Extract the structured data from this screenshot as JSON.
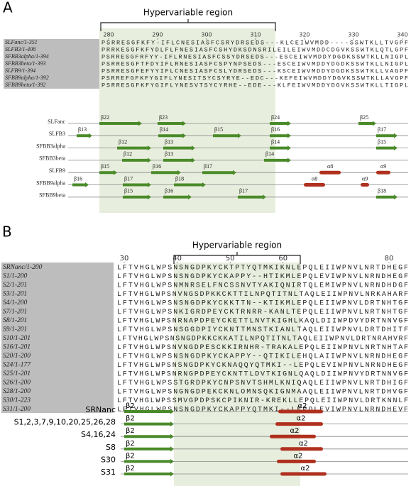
{
  "panels": [
    {
      "label": "A",
      "title": "Hypervariable region",
      "ruler": {
        "ticks": [
          280,
          290,
          300,
          310,
          320,
          330,
          340
        ]
      },
      "alignment": [
        {
          "name": "SLFanc/1-351",
          "seq": "PSRRESGFKFY-IFLCNESIASFCSRYDRSEDS---KLCEIWVMDD----SSWTKLLTVGPF"
        },
        {
          "name": "SLFB3/1-408",
          "seq": "PRRKESGFKFYDLFLFNESIASFCSHYDKSDNSRILEILEIWVMDDCDGVKSSWTKLQTLGPF"
        },
        {
          "name": "SFBB3alpha/1-394",
          "seq": "PSRRESGFRFYY-IFLRNESIASFCSSYDRSEDS---ESCEIWVMDDYDGDKSSWTKLLNIGPL"
        },
        {
          "name": "SFBB3beta/1-393",
          "seq": "PSRRESGFTFDYIFLRNESIASFCSPYNPSEDS---ESCEIWVMDDYDGDKSSWTKLLNIGPL"
        },
        {
          "name": "SLFB9/1-394",
          "seq": "PSRRESGFEFYYIFLCNESIASFCSLYDRSEDS---KSCEIWVMDDYDGDKSSWTKLLVAGPF"
        },
        {
          "name": "SFBB9alpha/1-392",
          "seq": "PSRREFGFKFYGIFLYNESITSYCSYRYE--EDC---KEFEIWVMDDYDGVKSSWTKLLAVGPF"
        },
        {
          "name": "SFBB9beta/1-392",
          "seq": "PSRRESGFKFYGIFLYNESVTSYCYRHE--EDE---KLFEIWVMDDYDGVKSSWTKLLTIGPL"
        }
      ],
      "tracks": [
        {
          "name": "SLFanc",
          "elements": [
            "β22",
            "β23",
            "β24",
            "β25"
          ]
        },
        {
          "name": "SLFB3",
          "elements": [
            "β13",
            "β14",
            "β15",
            "β16",
            "β17"
          ]
        },
        {
          "name": "SFBB3alpha",
          "elements": [
            "β12",
            "β13",
            "β14",
            "β15"
          ]
        },
        {
          "name": "SFBB3beta",
          "elements": [
            "β12",
            "β13",
            "β14"
          ]
        },
        {
          "name": "SLFB9",
          "elements": [
            "β15",
            "β16",
            "β17",
            "α8",
            "α9"
          ]
        },
        {
          "name": "SFBB9alpha",
          "elements": [
            "β16",
            "β17",
            "β18",
            "α8",
            "α9"
          ]
        },
        {
          "name": "SFBB9beta",
          "elements": [
            "β15",
            "β16",
            "β17",
            "β18"
          ]
        }
      ]
    },
    {
      "label": "B",
      "title": "Hypervariable region",
      "ruler": {
        "ticks": [
          30,
          40,
          50,
          60,
          80
        ]
      },
      "alignment": [
        {
          "name": "SRNanc/1-200",
          "seq": "LFTVHGLWPSNSNGDPKYCKTPTYQTMKIKNLEPQLEIIWPNVLNRTDHEGF"
        },
        {
          "name": "S1/1-200",
          "seq": "LFTVHGLWPSNSNGDPKYCKAPPY--HTIKMLEPQLEVIWPNVLNRNDHEGF"
        },
        {
          "name": "S2/1-201",
          "seq": "LFTVHGLWPSNMNRSELFNCSSNVTYAKIQNIRTQLEMIWPNVLNRNDHDGF"
        },
        {
          "name": "S3/1-201",
          "seq": "LFTVHGLWPSNVNGSDPKKCKTTILNPQTITNLTAQLEIIWPNVLNRKAHARF"
        },
        {
          "name": "S4/1-200",
          "seq": "LFTVHGLWPSNSNGDPKYCKKTTN--KTIKMLEPQLEIIWPNVLDRTNHTGF"
        },
        {
          "name": "S7/1-201",
          "seq": "LFTVHGLWPSNKIGRDPEYCKTRNRR-KANLTEPQLEIIWPNVLNRTNHTGF"
        },
        {
          "name": "S8/1-201",
          "seq": "LFTVHGLWPSNRNAPDPEYCKETTLNVTKIGHLKAQLDIIWPDVYDRTNNVGF"
        },
        {
          "name": "S9/1-201",
          "seq": "LFTVHGLWPSNSGGDPIYCKNTTMNSTKIANLTAQLEIIWPNVLDRTDHITF"
        },
        {
          "name": "S10/1-201",
          "seq": "LFTVHGLWPSNSNGDPKKCKKATILNPQTITNLTAQLEIIWPNVLDRTNRAHVRF"
        },
        {
          "name": "S16/1-201",
          "seq": "LFTVHGLWPSNVNGDPESCKKIRNHR-TRAKALEPQLEIIWPNVLNRTNHTAF"
        },
        {
          "name": "S20/1-200",
          "seq": "LFTVHGLWPSNSNGDPKYCKAPPY--QTIKILEHQLAIIWPNVLNRNDHEGF"
        },
        {
          "name": "S24/1-177",
          "seq": "LFTVHGLWPSNSNGDPKYCKNAQQYQTMKI--LEPQLEVIWPNVLNRNDHEGF"
        },
        {
          "name": "S25/1-201",
          "seq": "LFTVHGLWPSNRNGPDPEYCKNTTLDVTKIGNLQAQLDIIWPNVYDRTNNVGF"
        },
        {
          "name": "S26/1-200",
          "seq": "LFTVHGLWPSSTGRDPKYCNPSNVTSHMLKNIQAQLEIIWPNVLNRTDHIGF"
        },
        {
          "name": "S28/1-200",
          "seq": "LFTVHGLWPSNGNGDPEKCKNLOMNSQKIGNMAAQLEIIWPNVLNRTDHVGF"
        },
        {
          "name": "S30/1-223",
          "seq": "LFTVHGLWPSSMVGPDPSKCPIKNIR-KREKLLEPQLEIIWPNVLDRTKNNLF"
        },
        {
          "name": "S31/1-200",
          "seq": "LFTVHGLWPSNSNGDPKYCKAPPYQTMKI--LEPQLEVIWPNVLNRNDHEVF"
        }
      ],
      "tracks": [
        {
          "name": "SRNanc",
          "elements": [
            "β2",
            "α2"
          ]
        },
        {
          "name": "S1,2,3,7,9,10,20,25,26,28",
          "elements": [
            "β2",
            "α2"
          ]
        },
        {
          "name": "S4,16,24",
          "elements": [
            "β2",
            "α2"
          ]
        },
        {
          "name": "S8",
          "elements": [
            "β2",
            "α2"
          ]
        },
        {
          "name": "S30",
          "elements": [
            "β2",
            "α2"
          ]
        },
        {
          "name": "S31",
          "elements": [
            "β2",
            "α2"
          ]
        }
      ]
    }
  ]
}
